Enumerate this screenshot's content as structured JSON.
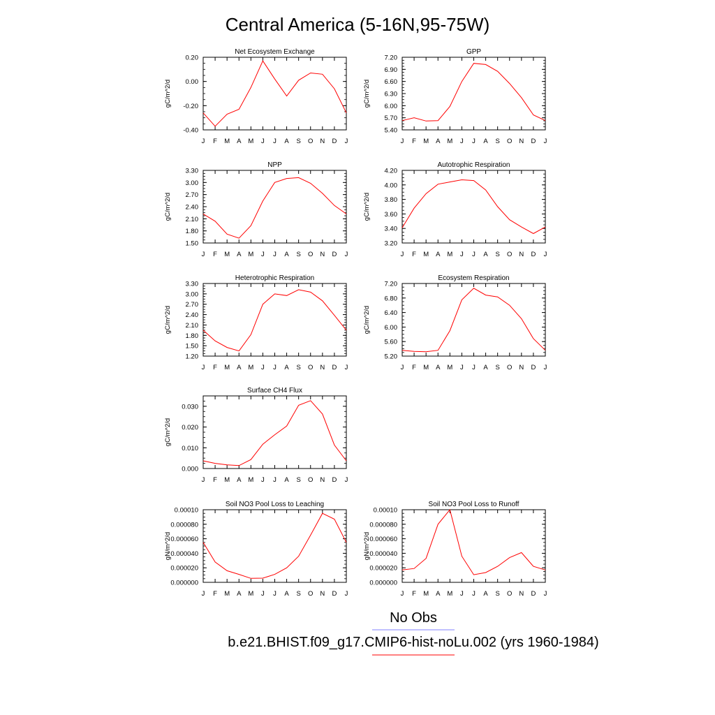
{
  "figure": {
    "title": "Central America (5-16N,95-75W)",
    "line_color": "#ff0000",
    "obs_color": "#8080ff",
    "legend": [
      {
        "label": "No Obs",
        "color": "#8080ff"
      },
      {
        "label": "b.e21.BHIST.f09_g17.CMIP6-hist-noLu.002 (yrs 1960-1984)",
        "color": "#ff0000"
      }
    ]
  },
  "chart_data": [
    {
      "type": "line",
      "title": "Net Ecosystem Exchange",
      "ylabel": "gC/m^2/d",
      "x": [
        "J",
        "F",
        "M",
        "A",
        "M",
        "J",
        "J",
        "A",
        "S",
        "O",
        "N",
        "D",
        "J"
      ],
      "ylim": [
        -0.4,
        0.2
      ],
      "yticks": [
        "0.20",
        "0.00",
        "-0.20",
        "-0.40"
      ],
      "ytick_values": [
        0.2,
        0.0,
        -0.2,
        -0.4
      ],
      "values": [
        -0.26,
        -0.37,
        -0.27,
        -0.23,
        -0.05,
        0.17,
        0.02,
        -0.12,
        0.01,
        0.07,
        0.06,
        -0.06,
        -0.26
      ]
    },
    {
      "type": "line",
      "title": "GPP",
      "ylabel": "gC/m^2/d",
      "x": [
        "J",
        "F",
        "M",
        "A",
        "M",
        "J",
        "J",
        "A",
        "S",
        "O",
        "N",
        "D",
        "J"
      ],
      "ylim": [
        5.4,
        7.2
      ],
      "yticks": [
        "7.20",
        "6.90",
        "6.60",
        "6.30",
        "6.00",
        "5.70",
        "5.40"
      ],
      "ytick_values": [
        7.2,
        6.9,
        6.6,
        6.3,
        6.0,
        5.7,
        5.4
      ],
      "values": [
        5.63,
        5.7,
        5.62,
        5.63,
        5.98,
        6.6,
        7.05,
        7.02,
        6.85,
        6.55,
        6.2,
        5.77,
        5.63
      ]
    },
    {
      "type": "line",
      "title": "NPP",
      "ylabel": "gC/m^2/d",
      "x": [
        "J",
        "F",
        "M",
        "A",
        "M",
        "J",
        "J",
        "A",
        "S",
        "O",
        "N",
        "D",
        "J"
      ],
      "ylim": [
        1.5,
        3.3
      ],
      "yticks": [
        "3.30",
        "3.00",
        "2.70",
        "2.40",
        "2.10",
        "1.80",
        "1.50"
      ],
      "ytick_values": [
        3.3,
        3.0,
        2.7,
        2.4,
        2.1,
        1.8,
        1.5
      ],
      "values": [
        2.22,
        2.04,
        1.72,
        1.62,
        1.93,
        2.54,
        3.0,
        3.1,
        3.12,
        2.98,
        2.73,
        2.43,
        2.22
      ]
    },
    {
      "type": "line",
      "title": "Autotrophic Respiration",
      "ylabel": "gC/m^2/d",
      "x": [
        "J",
        "F",
        "M",
        "A",
        "M",
        "J",
        "J",
        "A",
        "S",
        "O",
        "N",
        "D",
        "J"
      ],
      "ylim": [
        3.2,
        4.2
      ],
      "yticks": [
        "4.20",
        "4.00",
        "3.80",
        "3.60",
        "3.40",
        "3.20"
      ],
      "ytick_values": [
        4.2,
        4.0,
        3.8,
        3.6,
        3.4,
        3.2
      ],
      "values": [
        3.41,
        3.68,
        3.88,
        4.01,
        4.04,
        4.07,
        4.06,
        3.93,
        3.7,
        3.52,
        3.42,
        3.33,
        3.42
      ]
    },
    {
      "type": "line",
      "title": "Heterotrophic Respiration",
      "ylabel": "gC/m^2/d",
      "x": [
        "J",
        "F",
        "M",
        "A",
        "M",
        "J",
        "J",
        "A",
        "S",
        "O",
        "N",
        "D",
        "J"
      ],
      "ylim": [
        1.2,
        3.3
      ],
      "yticks": [
        "3.30",
        "3.00",
        "2.70",
        "2.40",
        "2.10",
        "1.80",
        "1.50",
        "1.20"
      ],
      "ytick_values": [
        3.3,
        3.0,
        2.7,
        2.4,
        2.1,
        1.8,
        1.5,
        1.2
      ],
      "values": [
        1.95,
        1.64,
        1.45,
        1.35,
        1.82,
        2.7,
        3.0,
        2.95,
        3.12,
        3.05,
        2.8,
        2.38,
        1.95
      ]
    },
    {
      "type": "line",
      "title": "Ecosystem Respiration",
      "ylabel": "gC/m^2/d",
      "x": [
        "J",
        "F",
        "M",
        "A",
        "M",
        "J",
        "J",
        "A",
        "S",
        "O",
        "N",
        "D",
        "J"
      ],
      "ylim": [
        5.2,
        7.2
      ],
      "yticks": [
        "7.20",
        "6.80",
        "6.40",
        "6.00",
        "5.60",
        "5.20"
      ],
      "ytick_values": [
        7.2,
        6.8,
        6.4,
        6.0,
        5.6,
        5.2
      ],
      "values": [
        5.36,
        5.33,
        5.32,
        5.36,
        5.9,
        6.75,
        7.07,
        6.88,
        6.83,
        6.6,
        6.23,
        5.68,
        5.36
      ]
    },
    {
      "type": "line",
      "title": "Surface CH4 Flux",
      "ylabel": "gC/m^2/d",
      "x": [
        "J",
        "F",
        "M",
        "A",
        "M",
        "J",
        "J",
        "A",
        "S",
        "O",
        "N",
        "D",
        "J"
      ],
      "ylim": [
        0.0,
        0.035
      ],
      "yticks": [
        "0.030",
        "0.020",
        "0.010",
        "0.000"
      ],
      "ytick_values": [
        0.03,
        0.02,
        0.01,
        0.0
      ],
      "values": [
        0.0037,
        0.0025,
        0.0018,
        0.0014,
        0.0043,
        0.0117,
        0.0163,
        0.0205,
        0.0305,
        0.0327,
        0.0263,
        0.0113,
        0.0037
      ]
    },
    {
      "type": "line",
      "title": "Soil NO3 Pool Loss to Leaching",
      "ylabel": "gN/m^2/d",
      "x": [
        "J",
        "F",
        "M",
        "A",
        "M",
        "J",
        "J",
        "A",
        "S",
        "O",
        "N",
        "D",
        "J"
      ],
      "ylim": [
        0.0,
        0.0001
      ],
      "yticks": [
        "0.00010",
        "0.000080",
        "0.000060",
        "0.000040",
        "0.000020",
        "0.000000"
      ],
      "ytick_values": [
        0.0001,
        8e-05,
        6e-05,
        4e-05,
        2e-05,
        0.0
      ],
      "values": [
        5.5e-05,
        2.8e-05,
        1.6e-05,
        1.1e-05,
        5.5e-06,
        5.8e-06,
        1.1e-05,
        2e-05,
        3.6e-05,
        6.5e-05,
        9.5e-05,
        8.7e-05,
        5.5e-05
      ]
    },
    {
      "type": "line",
      "title": "Soil NO3 Pool Loss to Runoff",
      "ylabel": "gN/m^2/d",
      "x": [
        "J",
        "F",
        "M",
        "A",
        "M",
        "J",
        "J",
        "A",
        "S",
        "O",
        "N",
        "D",
        "J"
      ],
      "ylim": [
        0.0,
        0.0001
      ],
      "yticks": [
        "0.00010",
        "0.000080",
        "0.000060",
        "0.000040",
        "0.000020",
        "0.000000"
      ],
      "ytick_values": [
        0.0001,
        8e-05,
        6e-05,
        4e-05,
        2e-05,
        0.0
      ],
      "values": [
        1.7e-05,
        1.9e-05,
        3.3e-05,
        8e-05,
        0.0001,
        3.6e-05,
        1.05e-05,
        1.35e-05,
        2.2e-05,
        3.4e-05,
        4.1e-05,
        2.2e-05,
        1.7e-05
      ]
    }
  ]
}
